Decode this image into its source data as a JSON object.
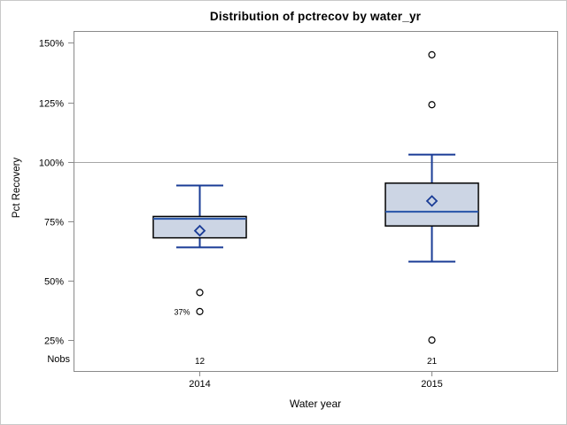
{
  "chart_data": {
    "type": "boxplot",
    "title": "Distribution of pctrecov by water_yr",
    "xlabel": "Water year",
    "ylabel": "Pct Recovery",
    "nobs_label": "Nobs",
    "ylim": [
      12,
      155
    ],
    "grid": false,
    "reference_line": 100,
    "y_ticks": [
      {
        "value": 150,
        "label": "150%"
      },
      {
        "value": 125,
        "label": "125%"
      },
      {
        "value": 100,
        "label": "100%"
      },
      {
        "value": 75,
        "label": "75%"
      },
      {
        "value": 50,
        "label": "50%"
      },
      {
        "value": 25,
        "label": "25%"
      }
    ],
    "categories": [
      "2014",
      "2015"
    ],
    "series": [
      {
        "category": "2014",
        "nobs": "12",
        "whisker_low": 64,
        "q1": 68,
        "median": 76,
        "q3": 77,
        "whisker_high": 90,
        "mean": 71,
        "outliers": [
          {
            "value": 45,
            "label": ""
          },
          {
            "value": 37,
            "label": "37%"
          }
        ]
      },
      {
        "category": "2015",
        "nobs": "21",
        "whisker_low": 58,
        "q1": 73,
        "median": 79,
        "q3": 91,
        "whisker_high": 103,
        "mean": 83.5,
        "outliers": [
          {
            "value": 145,
            "label": ""
          },
          {
            "value": 124,
            "label": ""
          },
          {
            "value": 25,
            "label": ""
          }
        ]
      }
    ],
    "colors": {
      "box_fill": "#ccd5e4",
      "box_border": "#000000",
      "whisker": "#1a3c96",
      "median": "#2553a8",
      "mean_marker": "#1a3c96",
      "outlier": "#000000",
      "reference_line": "#a6a6a6",
      "plot_border": "#8a8a8a",
      "figure_border": "#c9c9c9",
      "tick": "#8a8a8a"
    }
  }
}
